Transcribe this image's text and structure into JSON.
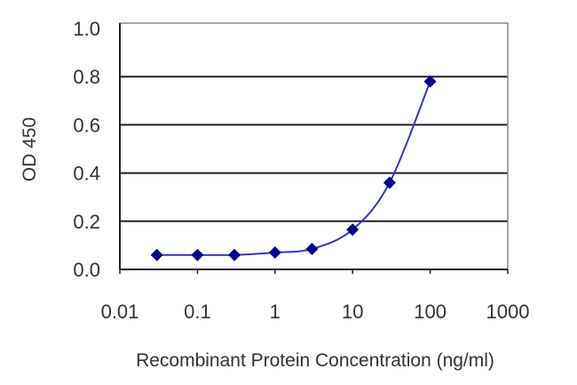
{
  "chart_data": {
    "type": "line",
    "title": "",
    "xlabel": "Recombinant Protein Concentration (ng/ml)",
    "ylabel": "OD 450",
    "xscale": "log",
    "xlim": [
      0.01,
      1000
    ],
    "ylim": [
      0,
      1.0
    ],
    "xticks": [
      "0.01",
      "0.1",
      "1",
      "10",
      "100",
      "1000"
    ],
    "yticks": [
      "0.0",
      "0.2",
      "0.4",
      "0.6",
      "0.8",
      "1.0"
    ],
    "grid": "horizontal",
    "legend": "none",
    "series": [
      {
        "x": [
          0.03,
          0.1,
          0.3,
          1,
          3,
          10,
          30,
          100
        ],
        "y": [
          0.06,
          0.06,
          0.06,
          0.07,
          0.085,
          0.165,
          0.36,
          0.78
        ],
        "color": "#00008B",
        "line_color": "#3333cc",
        "marker": "diamond"
      }
    ]
  }
}
